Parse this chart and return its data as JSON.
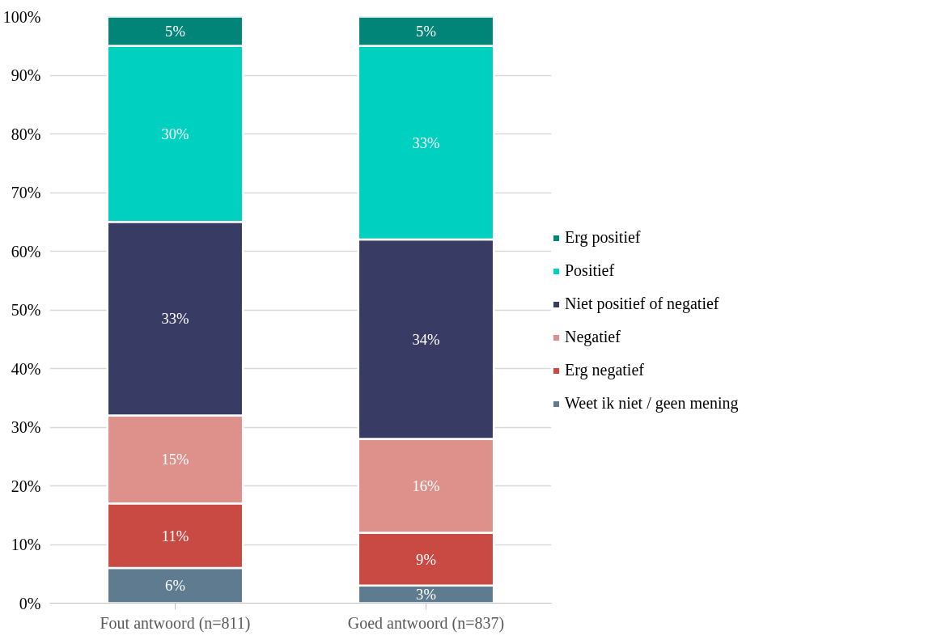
{
  "chart_data": {
    "type": "bar",
    "stacked": true,
    "categories": [
      "Fout antwoord (n=811)",
      "Goed antwoord (n=837)"
    ],
    "series": [
      {
        "name": "Weet ik niet / geen mening",
        "color": "#5f7b90",
        "values": [
          6,
          3
        ],
        "value_labels": [
          "6%",
          "3%"
        ]
      },
      {
        "name": "Erg negatief",
        "color": "#c94a42",
        "values": [
          11,
          9
        ],
        "value_labels": [
          "11%",
          "9%"
        ]
      },
      {
        "name": "Negatief",
        "color": "#de918b",
        "values": [
          15,
          16
        ],
        "value_labels": [
          "15%",
          "16%"
        ]
      },
      {
        "name": "Niet positief of negatief",
        "color": "#383c64",
        "values": [
          33,
          34
        ],
        "value_labels": [
          "33%",
          "34%"
        ]
      },
      {
        "name": "Positief",
        "color": "#00d0c0",
        "values": [
          30,
          33
        ],
        "value_labels": [
          "30%",
          "33%"
        ]
      },
      {
        "name": "Erg positief",
        "color": "#008578",
        "values": [
          5,
          5
        ],
        "value_labels": [
          "5%",
          "5%"
        ]
      }
    ],
    "ylim": [
      0,
      100
    ],
    "yticks": [
      {
        "value": 0,
        "label": "0%"
      },
      {
        "value": 10,
        "label": "10%"
      },
      {
        "value": 20,
        "label": "20%"
      },
      {
        "value": 30,
        "label": "30%"
      },
      {
        "value": 40,
        "label": "40%"
      },
      {
        "value": 50,
        "label": "50%"
      },
      {
        "value": 60,
        "label": "60%"
      },
      {
        "value": 70,
        "label": "70%"
      },
      {
        "value": 80,
        "label": "80%"
      },
      {
        "value": 90,
        "label": "90%"
      },
      {
        "value": 100,
        "label": "100%"
      }
    ],
    "grid": "y",
    "legend": "right"
  }
}
